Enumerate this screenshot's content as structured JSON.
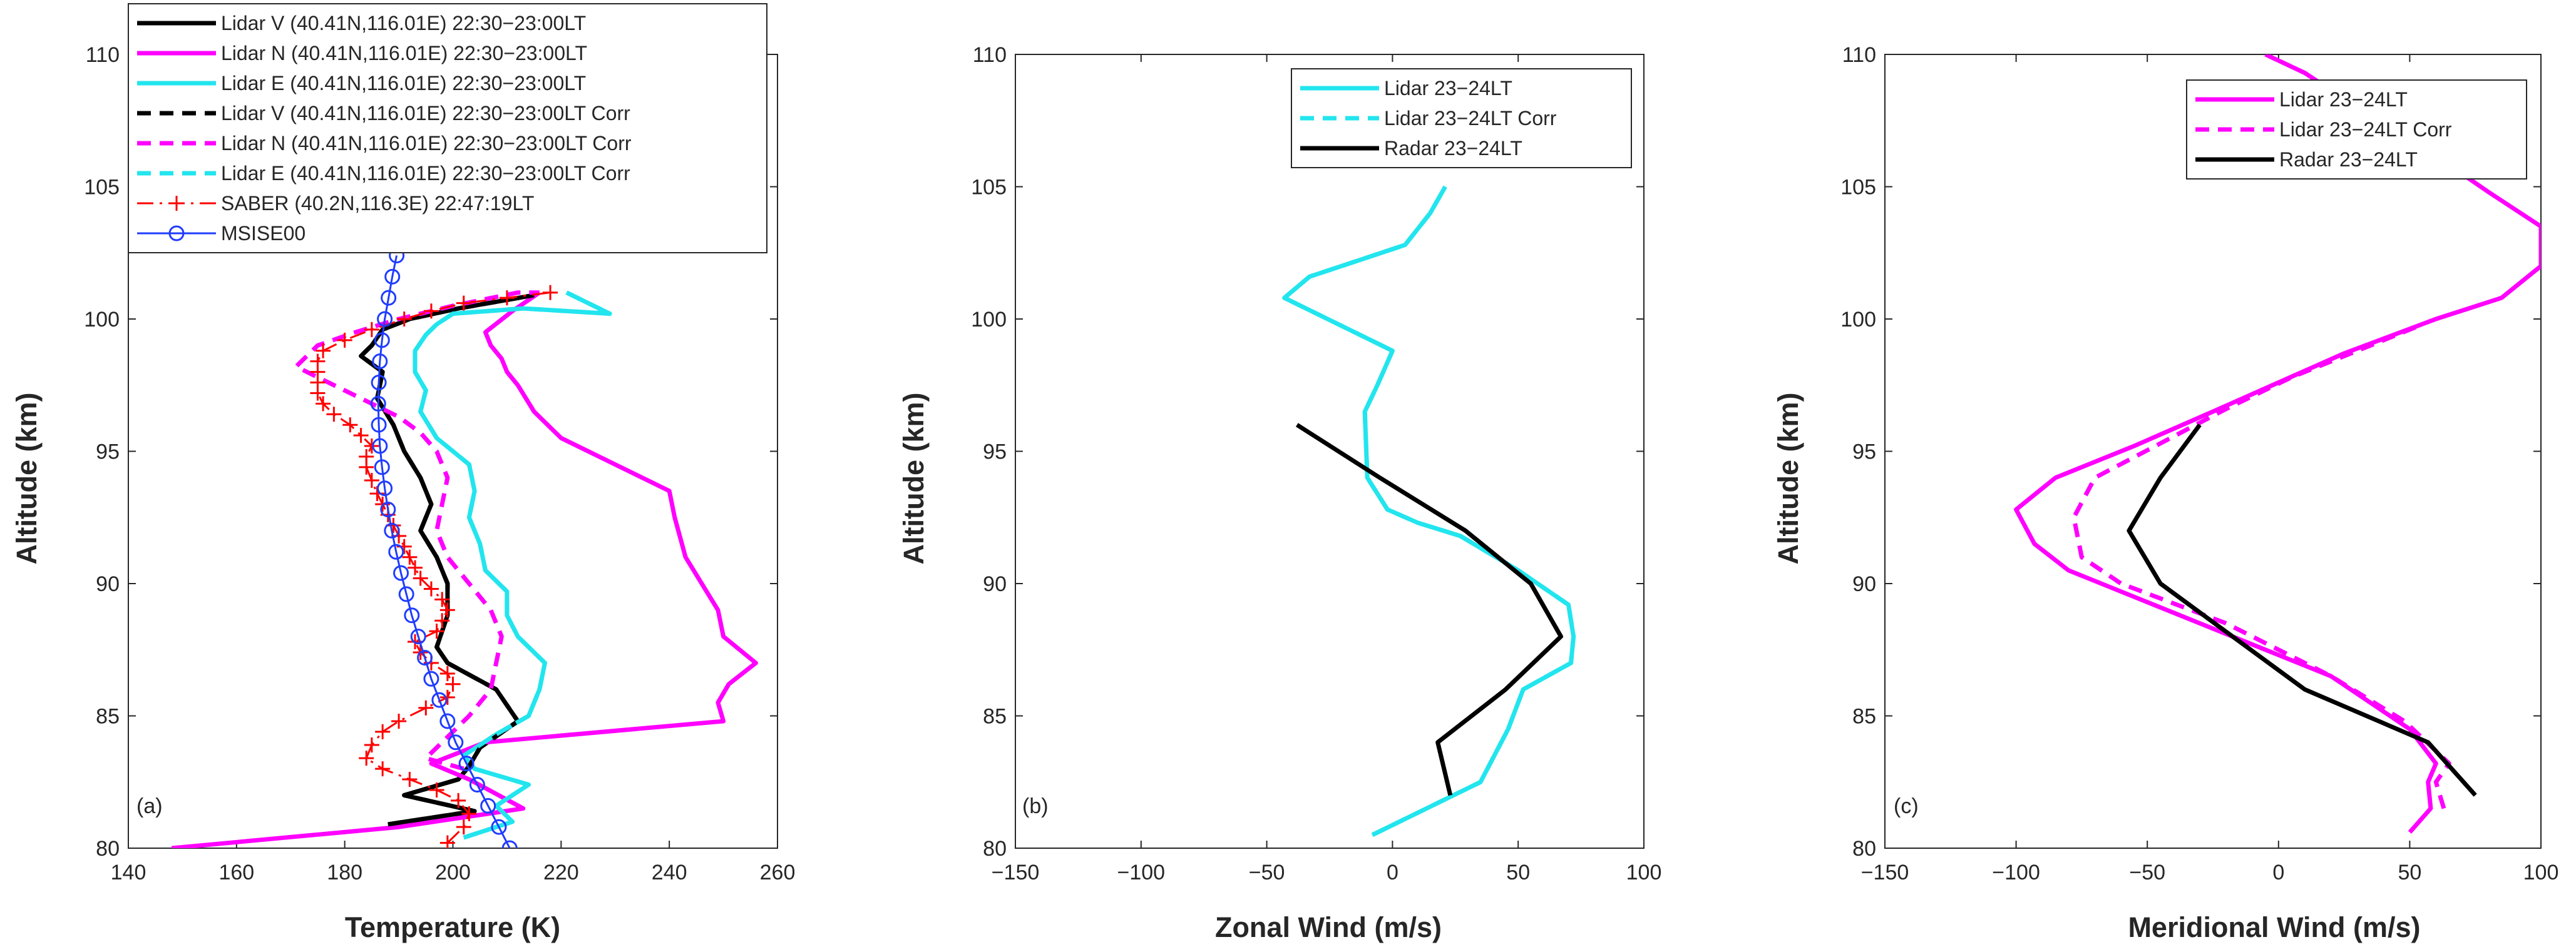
{
  "chart_data": [
    {
      "type": "line",
      "panel_label": "(a)",
      "xlabel": "Temperature (K)",
      "ylabel": "Altitude (km)",
      "xlim": [
        140,
        260
      ],
      "ylim": [
        80,
        110
      ],
      "xticks": [
        "140",
        "160",
        "180",
        "200",
        "220",
        "240",
        "260"
      ],
      "yticks": [
        "80",
        "85",
        "90",
        "95",
        "100",
        "105",
        "110"
      ],
      "legend_position": "top-left",
      "series": [
        {
          "name": "Lidar V (40.41N,116.01E) 22:30−23:00LT",
          "color": "#000000",
          "style": "solid",
          "marker": "none",
          "x": [
            188,
            204,
            191,
            201,
            203,
            205,
            212,
            208,
            199,
            197,
            199,
            199,
            197,
            194,
            196,
            194,
            191,
            189,
            186,
            187,
            183,
            185,
            186,
            187,
            192,
            201,
            215
          ],
          "y": [
            80.9,
            81.4,
            82.0,
            82.6,
            83.1,
            83.8,
            84.8,
            86.0,
            87.0,
            87.6,
            88.8,
            90.0,
            91.0,
            92.0,
            93.0,
            94.0,
            95.0,
            96.0,
            97.0,
            98.0,
            98.6,
            99.0,
            99.3,
            99.6,
            100.0,
            100.4,
            100.9
          ]
        },
        {
          "name": "Lidar N (40.41N,116.01E) 22:30−23:00LT",
          "color": "#ff00ff",
          "style": "solid",
          "marker": "none",
          "x": [
            148,
            190,
            213,
            203,
            196,
            206,
            250,
            249,
            251,
            256,
            250,
            249,
            243,
            241,
            240,
            230,
            220,
            215,
            212,
            210,
            209,
            207,
            206,
            211,
            216
          ],
          "y": [
            80.0,
            80.8,
            81.5,
            82.6,
            83.2,
            84.0,
            84.8,
            85.5,
            86.2,
            87.0,
            88.0,
            89.0,
            91.0,
            92.5,
            93.5,
            94.5,
            95.5,
            96.5,
            97.5,
            98.0,
            98.5,
            99.0,
            99.5,
            100.3,
            101.0
          ]
        },
        {
          "name": "Lidar E (40.41N,116.01E) 22:30−23:00LT",
          "color": "#22e5ee",
          "style": "solid",
          "marker": "none",
          "x": [
            202,
            211,
            208,
            214,
            204,
            202,
            208,
            214,
            216,
            217,
            212,
            210,
            210,
            206,
            205,
            203,
            204,
            203,
            197,
            194,
            195,
            193,
            193,
            195,
            197,
            200,
            213,
            229,
            221
          ],
          "y": [
            80.4,
            81.0,
            81.6,
            82.4,
            83.0,
            83.5,
            84.3,
            85.0,
            86.0,
            87.0,
            88.0,
            88.8,
            89.7,
            90.5,
            91.5,
            92.5,
            93.5,
            94.5,
            95.5,
            96.5,
            97.3,
            98.0,
            98.8,
            99.4,
            99.8,
            100.2,
            100.4,
            100.2,
            101.0
          ]
        },
        {
          "name": "Lidar V (40.41N,116.01E) 22:30−23:00LT Corr",
          "color": "#000000",
          "style": "dashed",
          "marker": "none",
          "x": [
            188,
            204,
            191,
            201,
            203,
            205,
            212,
            208,
            199,
            197,
            199,
            199,
            197,
            194,
            196,
            194,
            191,
            189,
            186,
            187,
            183,
            185,
            186,
            187,
            192,
            201,
            215
          ],
          "y": [
            80.9,
            81.4,
            82.0,
            82.6,
            83.1,
            83.8,
            84.8,
            86.0,
            87.0,
            87.6,
            88.8,
            90.0,
            91.0,
            92.0,
            93.0,
            94.0,
            95.0,
            96.0,
            97.0,
            98.0,
            98.6,
            99.0,
            99.3,
            99.6,
            100.0,
            100.4,
            100.9
          ]
        },
        {
          "name": "Lidar N (40.41N,116.01E) 22:30−23:00LT Corr",
          "color": "#ff00ff",
          "style": "dashed",
          "marker": "none",
          "x": [
            202,
            195,
            198,
            203,
            207,
            208,
            209,
            207,
            203,
            199,
            197,
            198,
            199,
            197,
            194,
            190,
            185,
            180,
            175,
            171,
            175,
            182,
            190,
            200,
            212,
            216
          ],
          "y": [
            83.0,
            83.4,
            84.0,
            85.0,
            86.0,
            87.0,
            88.0,
            89.0,
            90.0,
            91.0,
            92.0,
            93.0,
            94.0,
            95.0,
            95.7,
            96.3,
            96.8,
            97.3,
            97.8,
            98.2,
            99.0,
            99.5,
            100.0,
            100.5,
            101.0,
            101.0
          ]
        },
        {
          "name": "Lidar E (40.41N,116.01E) 22:30−23:00LT Corr",
          "color": "#22e5ee",
          "style": "dashed",
          "marker": "none",
          "x": [
            202,
            211,
            208,
            214,
            204,
            202,
            208,
            214,
            216,
            217,
            212,
            210,
            210,
            206,
            205,
            203,
            204,
            203,
            197,
            194,
            195,
            193,
            193,
            195,
            197,
            200,
            213,
            229,
            221
          ],
          "y": [
            80.4,
            81.0,
            81.6,
            82.4,
            83.0,
            83.5,
            84.3,
            85.0,
            86.0,
            87.0,
            88.0,
            88.8,
            89.7,
            90.5,
            91.5,
            92.5,
            93.5,
            94.5,
            95.5,
            96.5,
            97.3,
            98.0,
            98.8,
            99.4,
            99.8,
            100.2,
            100.4,
            100.2,
            101.0
          ]
        },
        {
          "name": "SABER (40.2N,116.3E) 22:47:19LT",
          "color": "#ff0000",
          "style": "dashdot",
          "marker": "plus",
          "x": [
            199,
            202,
            203,
            201,
            197,
            192,
            187,
            184,
            185,
            187,
            190,
            195,
            199,
            200,
            199,
            196,
            194,
            193,
            197,
            198,
            199,
            198,
            196,
            194,
            193,
            192,
            191,
            190,
            189,
            188,
            187,
            186,
            185,
            184,
            184,
            185,
            183,
            181,
            178,
            176,
            175,
            175,
            175,
            175,
            176,
            180,
            185,
            191,
            196,
            202,
            210,
            218
          ],
          "y": [
            80.2,
            80.8,
            81.3,
            81.8,
            82.2,
            82.6,
            83.0,
            83.4,
            83.9,
            84.4,
            84.8,
            85.3,
            85.7,
            86.2,
            86.6,
            87.0,
            87.4,
            87.8,
            88.2,
            88.6,
            89.0,
            89.4,
            89.8,
            90.2,
            90.6,
            91.0,
            91.4,
            91.8,
            92.2,
            92.6,
            93.0,
            93.4,
            93.9,
            94.4,
            94.8,
            95.2,
            95.6,
            96.0,
            96.4,
            96.8,
            97.2,
            97.6,
            98.0,
            98.4,
            98.8,
            99.2,
            99.6,
            100.0,
            100.3,
            100.6,
            100.8,
            101.0
          ]
        },
        {
          "name": "MSISE00",
          "color": "#1f3cff",
          "style": "solid",
          "marker": "circle",
          "x": [
            210.5,
            208.5,
            206.5,
            204.5,
            202.5,
            200.5,
            199,
            197.5,
            196,
            194.8,
            193.6,
            192.4,
            191.4,
            190.4,
            189.5,
            188.7,
            188,
            187.4,
            186.9,
            186.5,
            186.3,
            186.2,
            186.3,
            186.5,
            186.9,
            187.4,
            188.1,
            188.8,
            189.6
          ],
          "y": [
            80.0,
            80.8,
            81.6,
            82.4,
            83.2,
            84.0,
            84.8,
            85.6,
            86.4,
            87.2,
            88.0,
            88.8,
            89.6,
            90.4,
            91.2,
            92.0,
            92.8,
            93.6,
            94.4,
            95.2,
            96.0,
            96.8,
            97.6,
            98.4,
            99.2,
            100.0,
            100.8,
            101.6,
            102.4
          ]
        }
      ]
    },
    {
      "type": "line",
      "panel_label": "(b)",
      "xlabel": "Zonal Wind (m/s)",
      "ylabel": "Altitude (km)",
      "xlim": [
        -150,
        100
      ],
      "ylim": [
        80,
        110
      ],
      "xticks": [
        "−150",
        "−100",
        "−50",
        "0",
        "50",
        "100"
      ],
      "yticks": [
        "80",
        "85",
        "90",
        "95",
        "100",
        "105",
        "110"
      ],
      "legend_position": "top-right",
      "series": [
        {
          "name": "Lidar 23−24LT",
          "color": "#22e5ee",
          "style": "solid",
          "marker": "none",
          "x": [
            -8,
            35,
            46,
            52,
            71,
            72,
            70,
            50,
            27,
            10,
            -2,
            -10,
            -11,
            -6,
            0,
            -43,
            -33,
            5,
            15,
            21
          ],
          "y": [
            80.5,
            82.5,
            84.5,
            86.0,
            87.0,
            88.0,
            89.2,
            90.5,
            91.8,
            92.3,
            92.8,
            94.0,
            96.5,
            97.5,
            98.8,
            100.8,
            101.6,
            102.8,
            104.0,
            105.0
          ]
        },
        {
          "name": "Lidar 23−24LT Corr",
          "color": "#22e5ee",
          "style": "dashed",
          "marker": "none",
          "x": [
            -8,
            35,
            46,
            52,
            71,
            72,
            70,
            50,
            27,
            10,
            -2,
            -10,
            -11,
            -6,
            0,
            -43,
            -33,
            5,
            15,
            21
          ],
          "y": [
            80.5,
            82.5,
            84.5,
            86.0,
            87.0,
            88.0,
            89.2,
            90.5,
            91.8,
            92.3,
            92.8,
            94.0,
            96.5,
            97.5,
            98.8,
            100.8,
            101.6,
            102.8,
            104.0,
            105.0
          ]
        },
        {
          "name": "Radar 23−24LT",
          "color": "#000000",
          "style": "solid",
          "marker": "none",
          "x": [
            23,
            18,
            45,
            67,
            55,
            29,
            -5,
            -38
          ],
          "y": [
            82.0,
            84.0,
            86.0,
            88.0,
            90.0,
            92.0,
            94.0,
            96.0
          ]
        }
      ]
    },
    {
      "type": "line",
      "panel_label": "(c)",
      "xlabel": "Meridional Wind (m/s)",
      "ylabel": "Altitude (km)",
      "xlim": [
        -150,
        100
      ],
      "ylim": [
        80,
        110
      ],
      "xticks": [
        "−150",
        "−100",
        "−50",
        "0",
        "50",
        "100"
      ],
      "yticks": [
        "80",
        "85",
        "90",
        "95",
        "100",
        "105",
        "110"
      ],
      "legend_position": "top-right",
      "series": [
        {
          "name": "Lidar 23−24LT",
          "color": "#ff00ff",
          "style": "solid",
          "marker": "none",
          "x": [
            50,
            58,
            57,
            60,
            50,
            20,
            -30,
            -80,
            -93,
            -100,
            -85,
            -55,
            -25,
            0,
            25,
            60,
            85,
            100,
            100,
            80,
            55,
            30,
            10,
            -5
          ],
          "y": [
            80.6,
            81.5,
            82.5,
            83.2,
            84.5,
            86.5,
            88.5,
            90.5,
            91.5,
            92.8,
            94.0,
            95.2,
            96.5,
            97.6,
            98.7,
            100.0,
            100.8,
            102.0,
            103.5,
            104.8,
            106.5,
            108.0,
            109.3,
            110.0
          ]
        },
        {
          "name": "Lidar 23−24LT Corr",
          "color": "#ff00ff",
          "style": "dashed",
          "marker": "none",
          "x": [
            63,
            60,
            65,
            48,
            20,
            -20,
            -60,
            -75,
            -78,
            -70,
            -45,
            -20,
            5,
            30,
            55
          ],
          "y": [
            81.5,
            82.5,
            83.2,
            84.8,
            86.5,
            88.5,
            90.0,
            91.0,
            92.5,
            94.0,
            95.3,
            96.6,
            97.8,
            98.8,
            99.8
          ]
        },
        {
          "name": "Radar 23−24LT",
          "color": "#000000",
          "style": "solid",
          "marker": "none",
          "x": [
            75,
            57,
            10,
            -45,
            -57,
            -45,
            -30
          ],
          "y": [
            82.0,
            84.0,
            86.0,
            90.0,
            92.0,
            94.0,
            96.0
          ]
        }
      ]
    }
  ]
}
